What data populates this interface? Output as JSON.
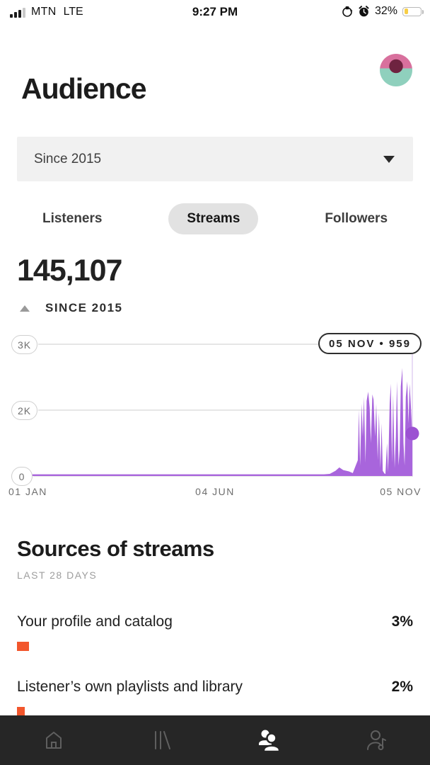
{
  "status_bar": {
    "carrier": "MTN",
    "network": "LTE",
    "time": "9:27 PM",
    "battery_label": "32%",
    "battery_percent": 32,
    "icons": [
      "signal-bars-icon",
      "orientation-lock-icon",
      "alarm-clock-icon",
      "battery-icon"
    ]
  },
  "header": {
    "title": "Audience",
    "avatar": "artist-profile-photo"
  },
  "filter": {
    "label": "Since 2015",
    "icon": "caret-down-icon"
  },
  "tabs": [
    {
      "label": "Listeners",
      "active": false
    },
    {
      "label": "Streams",
      "active": true
    },
    {
      "label": "Followers",
      "active": false
    }
  ],
  "stats": {
    "total": "145,107",
    "period_label": "SINCE 2015",
    "period_icon": "triangle-up-icon"
  },
  "chart_data": {
    "type": "area",
    "title": "Streams since 2015",
    "total_value": "145,107",
    "series_name": "Streams",
    "series_color": "#a865dc",
    "marker_color": "#9c51d2",
    "gridline_color": "#dddddd",
    "y_ticks": [
      "3K",
      "2K",
      "0"
    ],
    "x_ticks": [
      "01 JAN",
      "04 JUN",
      "05 NOV"
    ],
    "x_range": [
      "01 JAN",
      "05 NOV"
    ],
    "highlight": {
      "date": "05 NOV",
      "value": 959,
      "tooltip": "05 NOV • 959"
    },
    "legend": "none",
    "grid": true,
    "profile_percent": [
      [
        0,
        1.3
      ],
      [
        77,
        1.3
      ],
      [
        78.5,
        1.6
      ],
      [
        80,
        4
      ],
      [
        81,
        6.5
      ],
      [
        82,
        4.5
      ],
      [
        83.5,
        3.5
      ],
      [
        84.5,
        2.2
      ],
      [
        85.8,
        12
      ],
      [
        86.1,
        50
      ],
      [
        86.4,
        8
      ],
      [
        86.8,
        55
      ],
      [
        87.1,
        30
      ],
      [
        87.4,
        60
      ],
      [
        87.8,
        10
      ],
      [
        88.1,
        57
      ],
      [
        88.5,
        64
      ],
      [
        88.9,
        52
      ],
      [
        89.2,
        25
      ],
      [
        89.6,
        62
      ],
      [
        89.9,
        58
      ],
      [
        90.3,
        30
      ],
      [
        90.6,
        55
      ],
      [
        91,
        12
      ],
      [
        91.3,
        48
      ],
      [
        91.7,
        6
      ],
      [
        92,
        40
      ],
      [
        92.3,
        4
      ],
      [
        92.7,
        2
      ],
      [
        93,
        1.5
      ],
      [
        93.4,
        25
      ],
      [
        93.7,
        3
      ],
      [
        94.1,
        55
      ],
      [
        94.4,
        70
      ],
      [
        94.7,
        10
      ],
      [
        95,
        62
      ],
      [
        95.4,
        6
      ],
      [
        95.7,
        30
      ],
      [
        96,
        72
      ],
      [
        96.4,
        8
      ],
      [
        96.7,
        20
      ],
      [
        97,
        68
      ],
      [
        97.4,
        82
      ],
      [
        97.7,
        25
      ],
      [
        98,
        8
      ],
      [
        98.3,
        60
      ],
      [
        98.7,
        72
      ],
      [
        99,
        40
      ],
      [
        99.3,
        70
      ],
      [
        99.6,
        55
      ],
      [
        100,
        32
      ]
    ]
  },
  "sources": {
    "title": "Sources of streams",
    "subtitle": "LAST 28 DAYS",
    "bar_color": "#f2562c",
    "rows": [
      {
        "label": "Your profile and catalog",
        "value": "3%",
        "percent": 3
      },
      {
        "label": "Listener’s own playlists and library",
        "value": "2%",
        "percent": 2
      }
    ]
  },
  "nav": {
    "items": [
      {
        "name": "home",
        "icon": "home-icon",
        "active": false
      },
      {
        "name": "music",
        "icon": "music-lines-icon",
        "active": false
      },
      {
        "name": "audience",
        "icon": "audience-people-icon",
        "active": true
      },
      {
        "name": "profile",
        "icon": "artist-profile-icon",
        "active": false
      }
    ]
  },
  "colors": {
    "accent_purple": "#a865dc",
    "accent_orange": "#f2562c",
    "battery_yellow": "#f7ce46",
    "nav_background": "#262626",
    "pill_gray": "#e2e2e2",
    "dropdown_gray": "#f1f1f1"
  }
}
